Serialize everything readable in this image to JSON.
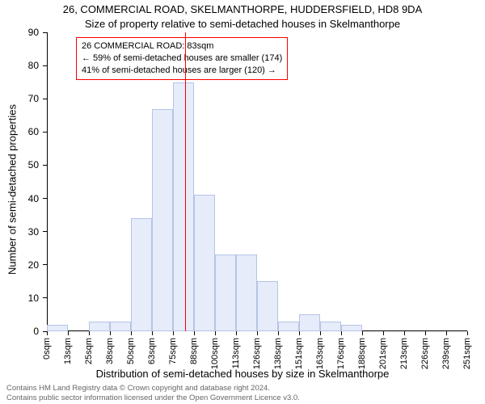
{
  "title": "26, COMMERCIAL ROAD, SKELMANTHORPE, HUDDERSFIELD, HD8 9DA",
  "subtitle": "Size of property relative to semi-detached houses in Skelmanthorpe",
  "ylabel": "Number of semi-detached properties",
  "xlabel": "Distribution of semi-detached houses by size in Skelmanthorpe",
  "attribution_line1": "Contains HM Land Registry data © Crown copyright and database right 2024.",
  "attribution_line2": "Contains public sector information licensed under the Open Government Licence v3.0.",
  "chart": {
    "type": "histogram",
    "background_color": "#ffffff",
    "axis_color": "#000000",
    "bar_fill": "#e6ecf9",
    "bar_stroke": "#b5c3e6",
    "bar_stroke_width": 1,
    "marker_line_color": "#ff0000",
    "marker_line_width": 1,
    "annot_border_color": "#ff0000",
    "annot_text_color": "#000000",
    "ylim": [
      0,
      90
    ],
    "ytick_step": 10,
    "yticks": [
      0,
      10,
      20,
      30,
      40,
      50,
      60,
      70,
      80,
      90
    ],
    "x_tick_labels": [
      "0sqm",
      "13sqm",
      "25sqm",
      "38sqm",
      "50sqm",
      "63sqm",
      "75sqm",
      "88sqm",
      "100sqm",
      "113sqm",
      "126sqm",
      "138sqm",
      "151sqm",
      "163sqm",
      "176sqm",
      "188sqm",
      "201sqm",
      "213sqm",
      "226sqm",
      "239sqm",
      "251sqm"
    ],
    "bin_width_sqm": 12.55,
    "x_range_sqm": [
      0,
      251
    ],
    "values": [
      2,
      0,
      3,
      3,
      34,
      67,
      75,
      41,
      23,
      23,
      15,
      3,
      5,
      3,
      2,
      0,
      0,
      0,
      0,
      0
    ],
    "marker_x_sqm": 83,
    "annotation": {
      "line1": "26 COMMERCIAL ROAD: 83sqm",
      "line2": "← 59% of semi-detached houses are smaller (174)",
      "line3": "41% of semi-detached houses are larger (120) →"
    },
    "title_fontsize": 13,
    "label_fontsize": 13,
    "tick_fontsize": 12,
    "x_tick_fontsize": 11,
    "annot_fontsize": 11,
    "attrib_fontsize": 9.5,
    "attrib_color": "#666666",
    "grid": false
  }
}
